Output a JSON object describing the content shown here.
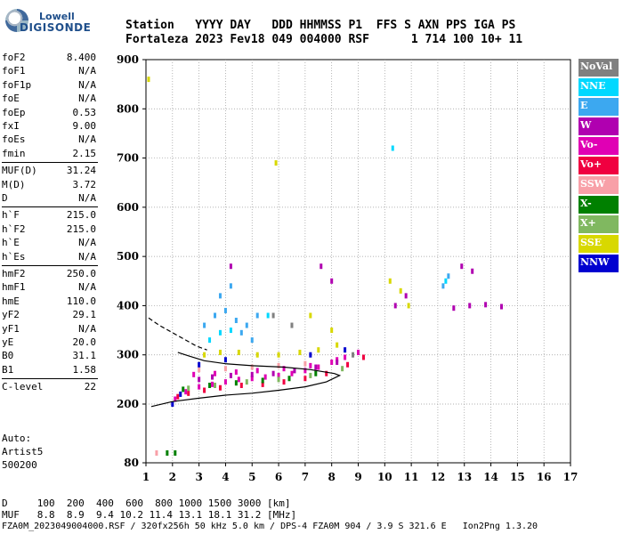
{
  "logo": {
    "line1": "Lowell",
    "line2": "DIGISONDE"
  },
  "header": {
    "line1": "Station   YYYY DAY   DDD HHMMSS P1  FFS S AXN PPS IGA PS",
    "line2": "Fortaleza 2023 Fev18 049 004000 RSF      1 714 100 10+ 11"
  },
  "params": [
    {
      "name": "foF2",
      "value": "8.400"
    },
    {
      "name": "foF1",
      "value": "N/A"
    },
    {
      "name": "foF1p",
      "value": "N/A"
    },
    {
      "name": "foE",
      "value": "N/A"
    },
    {
      "name": "foEp",
      "value": "0.53"
    },
    {
      "name": "fxI",
      "value": "9.00"
    },
    {
      "name": "foEs",
      "value": "N/A"
    },
    {
      "name": "fmin",
      "value": "2.15"
    },
    {
      "name": "MUF(D)",
      "value": "31.24"
    },
    {
      "name": "M(D)",
      "value": "3.72"
    },
    {
      "name": "D",
      "value": "N/A"
    },
    {
      "name": "h`F",
      "value": "215.0"
    },
    {
      "name": "h`F2",
      "value": "215.0"
    },
    {
      "name": "h`E",
      "value": "N/A"
    },
    {
      "name": "h`Es",
      "value": "N/A"
    },
    {
      "name": "hmF2",
      "value": "250.0"
    },
    {
      "name": "hmF1",
      "value": "N/A"
    },
    {
      "name": "hmE",
      "value": "110.0"
    },
    {
      "name": "yF2",
      "value": "29.1"
    },
    {
      "name": "yF1",
      "value": "N/A"
    },
    {
      "name": "yE",
      "value": "20.0"
    },
    {
      "name": "B0",
      "value": "31.1"
    },
    {
      "name": "B1",
      "value": "1.58"
    },
    {
      "name": "C-level",
      "value": "22"
    }
  ],
  "info": {
    "auto": "Auto:",
    "artist": "Artist5",
    "code": "500200"
  },
  "dmuf": {
    "d_line": "D     100  200  400  600  800 1000 1500 3000 [km]",
    "muf_line": "MUF   8.8  8.9  9.4 10.2 11.4 13.1 18.1 31.2 [MHz]"
  },
  "footer": "FZA0M_2023049004000.RSF / 320fx256h 50 kHz 5.0 km / DPS-4 FZA0M 904 / 3.9 S 321.6 E   Ion2Png 1.3.20",
  "legend": [
    {
      "label": "NoVal",
      "color": "#808080"
    },
    {
      "label": "NNE",
      "color": "#00d8ff"
    },
    {
      "label": "E",
      "color": "#3ca8f0"
    },
    {
      "label": "W",
      "color": "#b000b0"
    },
    {
      "label": "Vo-",
      "color": "#e000b4"
    },
    {
      "label": "Vo+",
      "color": "#f00040"
    },
    {
      "label": "SSW",
      "color": "#f8a0a8"
    },
    {
      "label": "X-",
      "color": "#008000"
    },
    {
      "label": "X+",
      "color": "#80b860"
    },
    {
      "label": "SSE",
      "color": "#d8d800"
    },
    {
      "label": "NNW",
      "color": "#0000d0"
    }
  ],
  "chart_data": {
    "type": "scatter",
    "xlabel": "",
    "ylabel": "",
    "xlim": [
      1,
      17
    ],
    "ylim": [
      80,
      900
    ],
    "xticks": [
      1,
      2,
      3,
      4,
      5,
      6,
      7,
      8,
      9,
      10,
      11,
      12,
      13,
      14,
      15,
      16,
      17
    ],
    "yticks": [
      80,
      200,
      300,
      400,
      500,
      600,
      700,
      800,
      900
    ],
    "grid": true,
    "legend_position": "right",
    "series": [
      {
        "name": "Vo-",
        "points": [
          [
            2.1,
            210
          ],
          [
            2.5,
            225
          ],
          [
            3.0,
            235
          ],
          [
            3.5,
            240
          ],
          [
            4.0,
            245
          ],
          [
            4.5,
            250
          ],
          [
            5.0,
            252
          ],
          [
            5.5,
            255
          ],
          [
            6.0,
            258
          ],
          [
            6.5,
            262
          ],
          [
            7.0,
            268
          ],
          [
            7.5,
            275
          ],
          [
            8.0,
            285
          ],
          [
            8.5,
            295
          ],
          [
            9.0,
            305
          ],
          [
            2.8,
            260
          ],
          [
            3.6,
            262
          ],
          [
            4.4,
            265
          ],
          [
            5.2,
            268
          ],
          [
            6.2,
            272
          ],
          [
            7.2,
            278
          ],
          [
            8.2,
            290
          ]
        ]
      },
      {
        "name": "Vo+",
        "points": [
          [
            2.2,
            215
          ],
          [
            2.6,
            222
          ],
          [
            3.2,
            228
          ],
          [
            3.8,
            233
          ],
          [
            4.6,
            238
          ],
          [
            5.4,
            240
          ],
          [
            6.2,
            245
          ],
          [
            7.0,
            252
          ],
          [
            7.8,
            262
          ],
          [
            8.6,
            280
          ],
          [
            9.2,
            295
          ]
        ]
      },
      {
        "name": "W",
        "points": [
          [
            3.0,
            250
          ],
          [
            3.5,
            255
          ],
          [
            4.2,
            258
          ],
          [
            5.0,
            260
          ],
          [
            5.8,
            262
          ],
          [
            6.6,
            268
          ],
          [
            7.4,
            275
          ],
          [
            8.2,
            285
          ],
          [
            10.4,
            400
          ],
          [
            10.8,
            420
          ],
          [
            12.6,
            395
          ],
          [
            13.2,
            400
          ],
          [
            13.8,
            402
          ],
          [
            14.4,
            398
          ],
          [
            8.0,
            450
          ],
          [
            7.6,
            480
          ],
          [
            4.2,
            480
          ],
          [
            12.9,
            480
          ],
          [
            13.3,
            470
          ]
        ]
      },
      {
        "name": "E",
        "points": [
          [
            3.2,
            360
          ],
          [
            3.6,
            380
          ],
          [
            4.0,
            390
          ],
          [
            4.4,
            370
          ],
          [
            4.8,
            360
          ],
          [
            5.2,
            380
          ],
          [
            3.8,
            420
          ],
          [
            4.2,
            440
          ],
          [
            4.6,
            345
          ],
          [
            5.0,
            330
          ],
          [
            12.2,
            440
          ],
          [
            12.4,
            460
          ]
        ]
      },
      {
        "name": "NNE",
        "points": [
          [
            3.4,
            330
          ],
          [
            3.8,
            345
          ],
          [
            4.2,
            350
          ],
          [
            5.6,
            380
          ],
          [
            10.3,
            720
          ],
          [
            12.3,
            450
          ]
        ]
      },
      {
        "name": "SSE",
        "points": [
          [
            3.2,
            300
          ],
          [
            3.8,
            305
          ],
          [
            4.5,
            305
          ],
          [
            5.2,
            300
          ],
          [
            6.0,
            300
          ],
          [
            6.8,
            305
          ],
          [
            7.5,
            310
          ],
          [
            8.2,
            320
          ],
          [
            10.2,
            450
          ],
          [
            10.6,
            430
          ],
          [
            10.9,
            400
          ],
          [
            7.2,
            380
          ],
          [
            8.0,
            350
          ],
          [
            5.9,
            690
          ],
          [
            1.1,
            860
          ]
        ]
      },
      {
        "name": "X-",
        "points": [
          [
            2.4,
            230
          ],
          [
            3.4,
            238
          ],
          [
            4.4,
            243
          ],
          [
            5.4,
            248
          ],
          [
            6.4,
            252
          ],
          [
            7.4,
            262
          ],
          [
            1.8,
            100
          ],
          [
            2.1,
            100
          ]
        ]
      },
      {
        "name": "X+",
        "points": [
          [
            2.6,
            232
          ],
          [
            3.6,
            238
          ],
          [
            4.8,
            245
          ],
          [
            6.0,
            250
          ],
          [
            7.2,
            258
          ],
          [
            8.4,
            272
          ]
        ]
      },
      {
        "name": "SSW",
        "points": [
          [
            3.0,
            270
          ],
          [
            4.0,
            272
          ],
          [
            5.0,
            275
          ],
          [
            6.0,
            278
          ],
          [
            7.0,
            282
          ],
          [
            1.4,
            100
          ]
        ]
      },
      {
        "name": "NNW",
        "points": [
          [
            2.0,
            200
          ],
          [
            2.3,
            220
          ],
          [
            3.0,
            280
          ],
          [
            4.0,
            290
          ],
          [
            7.2,
            300
          ],
          [
            8.5,
            310
          ]
        ]
      },
      {
        "name": "NoVal",
        "points": [
          [
            5.8,
            380
          ],
          [
            6.5,
            360
          ],
          [
            8.8,
            300
          ]
        ]
      }
    ],
    "trace_solid": [
      [
        1.2,
        195
      ],
      [
        2,
        205
      ],
      [
        3,
        212
      ],
      [
        4,
        218
      ],
      [
        5,
        222
      ],
      [
        6,
        228
      ],
      [
        7,
        235
      ],
      [
        7.8,
        245
      ],
      [
        8.3,
        258
      ],
      [
        8.1,
        262
      ],
      [
        7.2,
        270
      ],
      [
        6.2,
        275
      ],
      [
        5,
        278
      ],
      [
        4,
        282
      ],
      [
        3.2,
        288
      ],
      [
        2.6,
        298
      ],
      [
        2.2,
        305
      ]
    ],
    "trace_dashed": [
      [
        1.1,
        375
      ],
      [
        1.5,
        360
      ],
      [
        2.0,
        345
      ],
      [
        2.5,
        330
      ],
      [
        2.9,
        318
      ],
      [
        3.3,
        310
      ]
    ]
  }
}
